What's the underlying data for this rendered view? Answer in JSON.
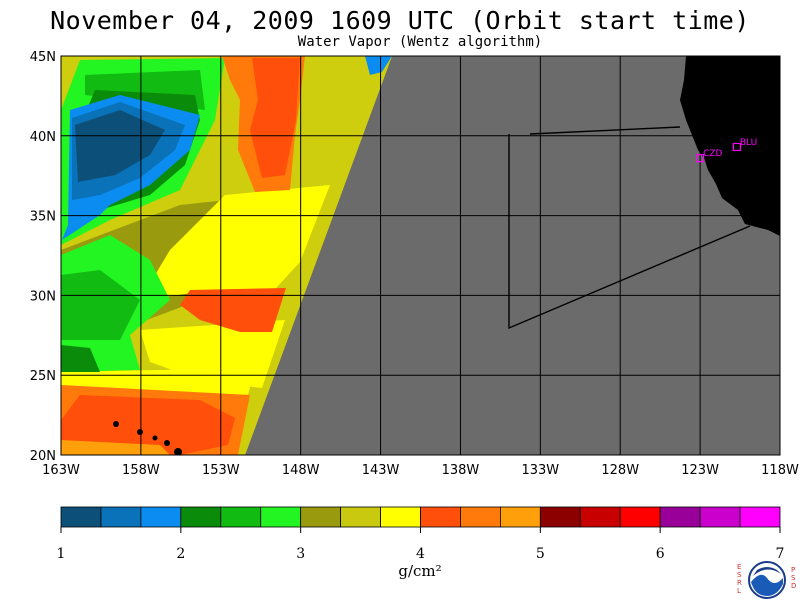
{
  "title": "November 04, 2009  1609 UTC  (Orbit start time)",
  "subtitle": "Water Vapor (Wentz algorithm)",
  "map": {
    "lon_range": [
      -163,
      -118
    ],
    "lat_range": [
      20,
      45
    ],
    "lat_ticks": [
      "45N",
      "40N",
      "35N",
      "30N",
      "25N",
      "20N"
    ],
    "lon_ticks": [
      "163W",
      "158W",
      "153W",
      "148W",
      "143W",
      "138W",
      "133W",
      "128W",
      "123W",
      "118W"
    ],
    "colors": {
      "no_data": "#6b6b6b",
      "land": "#000000",
      "grid": "#000000",
      "station": "#ff00ff"
    },
    "stations": [
      {
        "label": "CZD",
        "lon": -123.0,
        "lat": 38.6
      },
      {
        "label": "BLU",
        "lon": -120.7,
        "lat": 39.3
      }
    ]
  },
  "colorbar": {
    "tick_labels": [
      "1",
      "2",
      "3",
      "4",
      "5",
      "6",
      "7"
    ],
    "colors": [
      "#0c4f78",
      "#0a72b8",
      "#0a8cf0",
      "#0a8c0a",
      "#11bb11",
      "#22f522",
      "#9a9a0f",
      "#c9c90f",
      "#ffff00",
      "#ff4f0a",
      "#ff7a0a",
      "#ff9f0a",
      "#8c0000",
      "#c80000",
      "#ff0000",
      "#990099",
      "#cc00cc",
      "#ff00ff"
    ],
    "unit": "g/cm²"
  },
  "logo": {
    "left_letters": [
      "E",
      "S",
      "R",
      "L"
    ],
    "right_letters": [
      "P",
      "S",
      "D"
    ]
  }
}
